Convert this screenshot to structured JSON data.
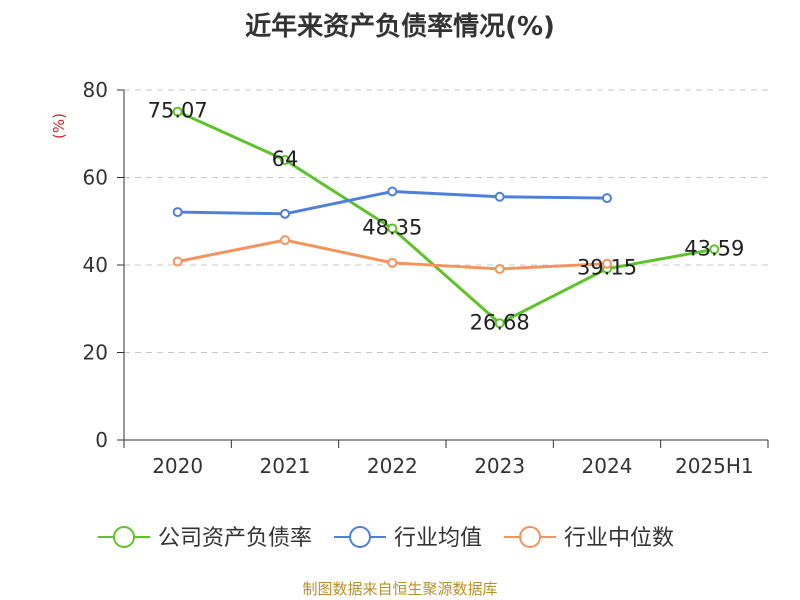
{
  "chart_data": {
    "type": "line",
    "title": "近年来资产负债率情况(%)",
    "ylabel": "(%)",
    "xlabel": "",
    "categories": [
      "2020",
      "2021",
      "2022",
      "2023",
      "2024",
      "2025H1"
    ],
    "yticks": [
      "0",
      "20",
      "40",
      "60",
      "80"
    ],
    "ylim": [
      0,
      80
    ],
    "grid": true,
    "legend_position": "bottom",
    "series": [
      {
        "name": "公司资产负债率",
        "color": "#5ec22a",
        "values": [
          75.07,
          64,
          48.35,
          26.68,
          39.15,
          43.59
        ],
        "labels": [
          "75.07",
          "64",
          "48.35",
          "26.68",
          "39.15",
          "43.59"
        ]
      },
      {
        "name": "行业均值",
        "color": "#4f7fd9",
        "values": [
          52.1,
          51.7,
          56.8,
          55.6,
          55.3,
          null
        ]
      },
      {
        "name": "行业中位数",
        "color": "#f5935f",
        "values": [
          40.8,
          45.7,
          40.5,
          39.1,
          40.3,
          null
        ]
      }
    ]
  },
  "source_text": "制图数据来自恒生聚源数据库"
}
